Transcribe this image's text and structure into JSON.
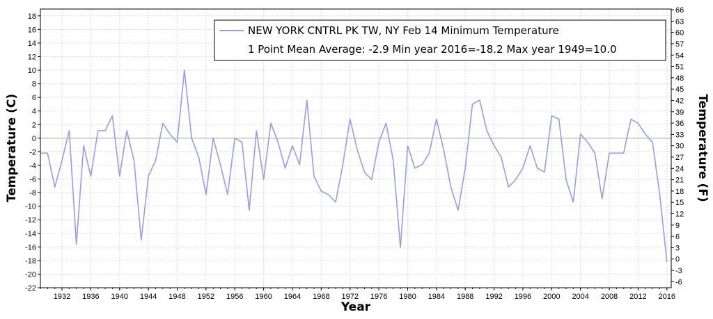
{
  "chart_data": {
    "type": "line",
    "title": "",
    "xlabel": "Year",
    "ylabel": "Temperature (C)",
    "ylabel_right": "Temperature (F)",
    "xlim": [
      1929,
      2016.6
    ],
    "ylim": [
      -22,
      19
    ],
    "x_ticks": [
      "1932",
      "1936",
      "1940",
      "1944",
      "1948",
      "1952",
      "1956",
      "1960",
      "1964",
      "1968",
      "1972",
      "1976",
      "1980",
      "1984",
      "1988",
      "1992",
      "1996",
      "2000",
      "2004",
      "2008",
      "2012",
      "2016"
    ],
    "y_ticks": [
      "18",
      "16",
      "14",
      "12",
      "10",
      "8",
      "6",
      "4",
      "2",
      "0",
      "-2",
      "-4",
      "-6",
      "-8",
      "-10",
      "-12",
      "-14",
      "-16",
      "-18",
      "-20",
      "-22"
    ],
    "y_ticks_right": [
      "66",
      "63",
      "60",
      "57",
      "54",
      "51",
      "48",
      "45",
      "42",
      "39",
      "36",
      "33",
      "30",
      "27",
      "24",
      "21",
      "18",
      "15",
      "12",
      "9",
      "6",
      "3",
      "0",
      "-3",
      "-6"
    ],
    "grid": true,
    "legend_position": "top-right",
    "legend": {
      "line1": "NEW YORK CNTRL PK TW, NY  Feb 14  Minimum Temperature",
      "line2": "1 Point Mean  Average: -2.9  Min year 2016=-18.2  Max year 1949=10.0"
    },
    "colors": {
      "series": "#9999ee",
      "zero_line": "#aaaaaa",
      "grid": "#d8d8d8"
    },
    "series": [
      {
        "name": "NEW YORK CNTRL PK TW, NY  Feb 14  Minimum Temperature",
        "x": [
          1929,
          1930,
          1931,
          1932,
          1933,
          1934,
          1935,
          1936,
          1937,
          1938,
          1939,
          1940,
          1941,
          1942,
          1943,
          1944,
          1945,
          1946,
          1947,
          1948,
          1949,
          1950,
          1951,
          1952,
          1953,
          1954,
          1955,
          1956,
          1957,
          1958,
          1959,
          1960,
          1961,
          1962,
          1963,
          1964,
          1965,
          1966,
          1967,
          1968,
          1969,
          1970,
          1971,
          1972,
          1973,
          1974,
          1975,
          1976,
          1977,
          1978,
          1979,
          1980,
          1981,
          1982,
          1983,
          1984,
          1985,
          1986,
          1987,
          1988,
          1989,
          1990,
          1991,
          1992,
          1993,
          1994,
          1995,
          1996,
          1997,
          1998,
          1999,
          2000,
          2001,
          2002,
          2003,
          2004,
          2005,
          2006,
          2007,
          2008,
          2009,
          2010,
          2011,
          2012,
          2013,
          2014,
          2015,
          2016
        ],
        "y": [
          -2.2,
          -2.2,
          -7.2,
          -3.3,
          1.1,
          -15.6,
          -1.1,
          -5.6,
          1.1,
          1.1,
          3.3,
          -5.6,
          1.1,
          -3.3,
          -15.0,
          -5.6,
          -3.3,
          2.2,
          0.6,
          -0.6,
          10.0,
          0.0,
          -2.8,
          -8.3,
          0.0,
          -3.9,
          -8.3,
          0.0,
          -0.6,
          -10.6,
          1.1,
          -6.1,
          2.2,
          -0.6,
          -4.4,
          -1.1,
          -3.9,
          5.6,
          -5.6,
          -7.8,
          -8.3,
          -9.4,
          -3.9,
          2.8,
          -1.7,
          -5.0,
          -6.1,
          -0.6,
          2.2,
          -3.3,
          -16.1,
          -1.1,
          -4.4,
          -3.9,
          -2.2,
          2.8,
          -1.7,
          -7.2,
          -10.6,
          -4.4,
          5.0,
          5.6,
          1.1,
          -1.1,
          -2.8,
          -7.2,
          -6.1,
          -4.4,
          -1.1,
          -4.4,
          -5.0,
          3.3,
          2.8,
          -6.1,
          -9.4,
          0.6,
          -0.6,
          -2.2,
          -8.9,
          -2.2,
          -2.2,
          -2.2,
          2.8,
          2.2,
          0.6,
          -0.6,
          -8.3,
          -18.2
        ]
      }
    ]
  }
}
